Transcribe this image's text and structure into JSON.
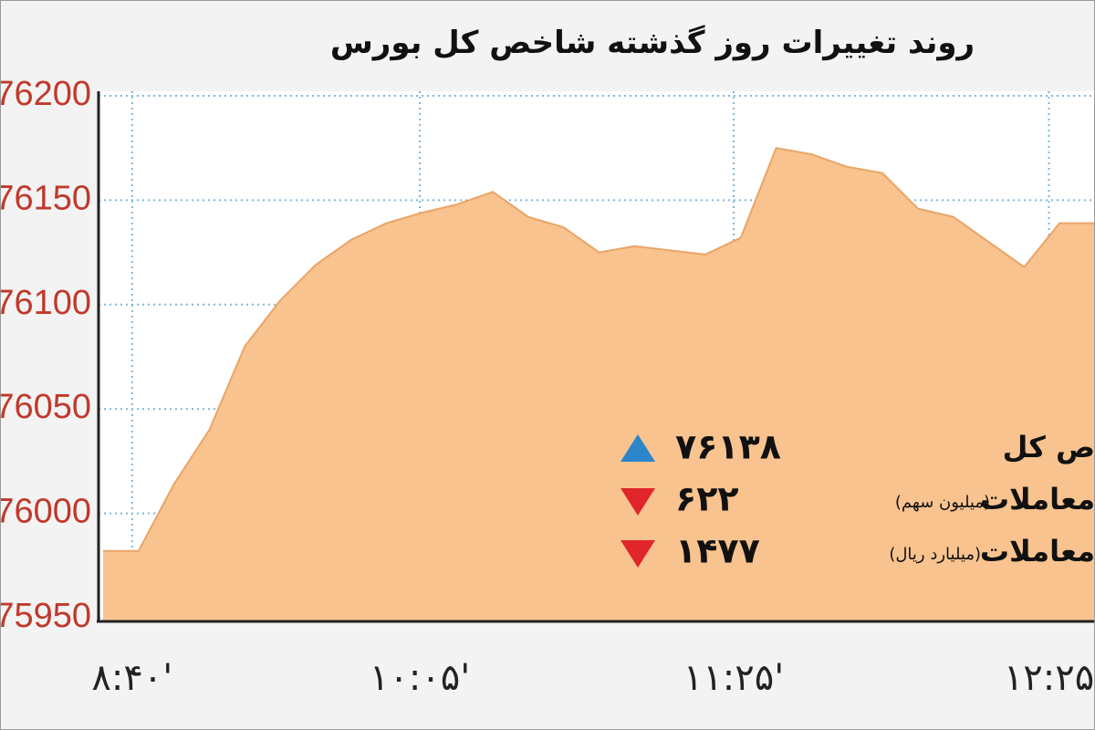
{
  "chart_data": {
    "type": "area",
    "title": "روند تغییرات روز گذشته شاخص کل بورس",
    "values": [
      75982,
      75982,
      76014,
      76040,
      76080,
      76102,
      76119,
      76131,
      76139,
      76144,
      76148,
      76154,
      76142,
      76137,
      76125,
      76128,
      76126,
      76124,
      76132,
      76175,
      76172,
      76166,
      76163,
      76146,
      76142,
      76130,
      76118,
      76139,
      76139
    ],
    "color": "#f9c38f",
    "line_color": "#eaa467",
    "ylim": [
      75950,
      76200
    ],
    "yticks": [
      75950,
      76000,
      76050,
      76100,
      76150,
      76200
    ],
    "xlim": [
      0,
      28
    ],
    "xticks": [
      {
        "value": 0.82,
        "label": "۸:۴۰'"
      },
      {
        "value": 8.94,
        "label": "۱۰:۰۵'"
      },
      {
        "value": 17.8,
        "label": "۱۱:۲۵'"
      },
      {
        "value": 26.7,
        "label": "۱۲:۲۵"
      }
    ],
    "grid": true,
    "annotations": [
      {
        "label": "ص کل",
        "value": "۷۶۱۳۸",
        "direction": "up",
        "color": "#2b86c9"
      },
      {
        "label": "معاملات",
        "note": "(میلیون سهم)",
        "value": "۶۲۲",
        "direction": "down",
        "color": "#e0262b"
      },
      {
        "label": "معاملات",
        "note": "(میلیارد ریال)",
        "value": "۱۴۷۷",
        "direction": "down",
        "color": "#e0262b"
      }
    ]
  }
}
